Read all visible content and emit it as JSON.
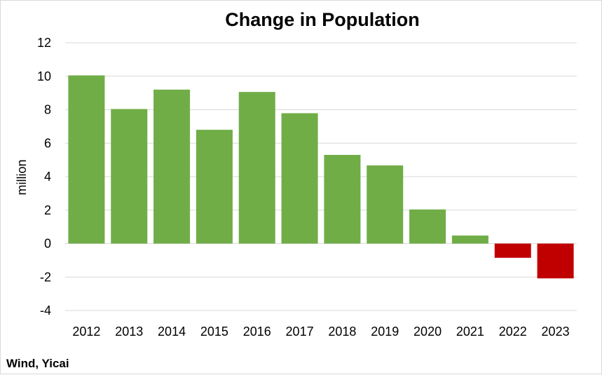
{
  "chart_data": {
    "type": "bar",
    "title": "Change in Population",
    "ylabel": "million",
    "xlabel": "",
    "categories": [
      "2012",
      "2013",
      "2014",
      "2015",
      "2016",
      "2017",
      "2018",
      "2019",
      "2020",
      "2021",
      "2022",
      "2023"
    ],
    "values": [
      10.05,
      8.04,
      9.2,
      6.8,
      9.06,
      7.79,
      5.3,
      4.67,
      2.04,
      0.48,
      -0.85,
      -2.08
    ],
    "ylim": [
      -4,
      12
    ],
    "yticks": [
      "12",
      "10",
      "8",
      "6",
      "4",
      "2",
      "0",
      "-2",
      "-4"
    ],
    "grid": true,
    "legend": "none",
    "colors": {
      "positive": "#70ad47",
      "negative": "#c00000",
      "grid": "#d9d9d9"
    }
  },
  "source": "Wind, Yicai"
}
